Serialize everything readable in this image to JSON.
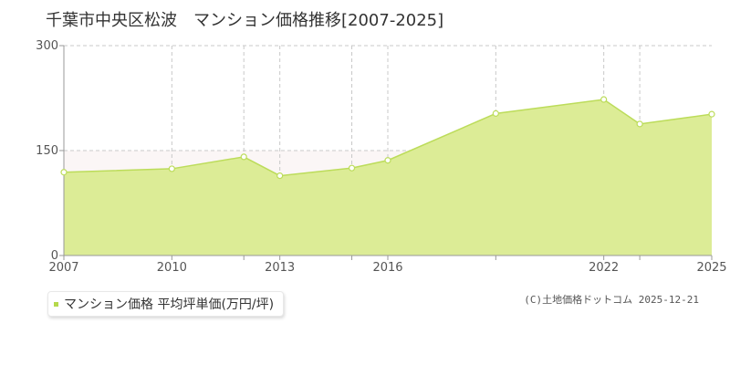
{
  "title": "千葉市中央区松波　マンション価格推移[2007-2025]",
  "legend": {
    "label": "マンション価格 平均坪単価(万円/坪)"
  },
  "credit": "(C)土地価格ドットコム 2025-12-21",
  "colors": {
    "fill": "#dcec96",
    "line": "#bcdc5a",
    "grid": "#c8c8c8",
    "axis": "#999999",
    "highlight": "#fbf6f6"
  },
  "chart_data": {
    "type": "area",
    "series": [
      {
        "name": "マンション価格 平均坪単価(万円/坪)",
        "points": [
          {
            "x": 2007,
            "y": 119
          },
          {
            "x": 2010,
            "y": 124
          },
          {
            "x": 2012,
            "y": 141
          },
          {
            "x": 2013,
            "y": 114
          },
          {
            "x": 2015,
            "y": 125
          },
          {
            "x": 2016,
            "y": 136
          },
          {
            "x": 2019,
            "y": 203
          },
          {
            "x": 2022,
            "y": 223
          },
          {
            "x": 2023,
            "y": 188
          },
          {
            "x": 2025,
            "y": 202
          }
        ]
      }
    ],
    "x_ticks": [
      "2007",
      "2010",
      "2013",
      "2016",
      "2022",
      "2025"
    ],
    "y_ticks": [
      "0",
      "150",
      "300"
    ],
    "ylim": [
      0,
      300
    ],
    "xlim": [
      2007,
      2025
    ],
    "grid": true
  }
}
